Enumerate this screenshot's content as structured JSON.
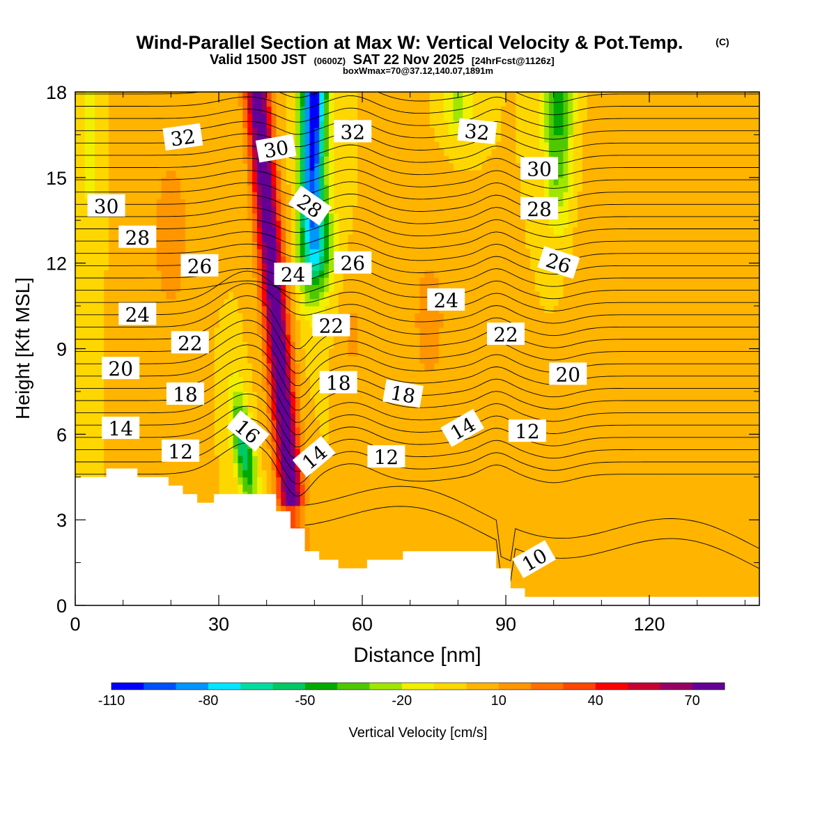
{
  "title": "Wind-Parallel Section at Max W: Vertical Velocity & Pot.Temp.",
  "title_mark": "(C)",
  "subtitle_a": "Valid 1500 JST",
  "subtitle_b": "(0600Z)",
  "subtitle_c": "SAT 22 Nov 2025",
  "subtitle_d": "[24hrFcst@1126z]",
  "subtitle2": "boxWmax=70@37.12,140.07,1891m",
  "chart_data": {
    "type": "heatmap",
    "xlabel": "Distance [nm]",
    "ylabel": "Height [Kft MSL]",
    "xlim": [
      0,
      143
    ],
    "ylim": [
      0,
      18
    ],
    "x_ticks": [
      0,
      30,
      60,
      90,
      120
    ],
    "y_ticks": [
      0,
      3,
      6,
      9,
      12,
      15,
      18
    ],
    "x_tick_labels": [
      "0",
      "30",
      "60",
      "90",
      "120"
    ],
    "y_tick_labels": [
      "0",
      "3",
      "6",
      "9",
      "12",
      "15",
      "18"
    ],
    "colorbar": {
      "label": "Vertical Velocity [cm/s]",
      "levels": [
        -110,
        -100,
        -90,
        -80,
        -70,
        -60,
        -50,
        -40,
        -30,
        -20,
        -10,
        0,
        10,
        20,
        30,
        40,
        50,
        60,
        70,
        80
      ],
      "tick_labels": [
        "-110",
        "-80",
        "-50",
        "-20",
        "10",
        "40",
        "70"
      ],
      "tick_values": [
        -110,
        -80,
        -50,
        -20,
        10,
        40,
        70
      ],
      "colors": [
        "#0000ff",
        "#0050ff",
        "#0096ff",
        "#00e6ff",
        "#00dca0",
        "#00c864",
        "#00aa00",
        "#50c800",
        "#a0e600",
        "#f0f000",
        "#ffd700",
        "#ffb400",
        "#ff9600",
        "#ff6e00",
        "#ff4600",
        "#ff0000",
        "#c80032",
        "#960064",
        "#640096"
      ]
    },
    "contour_labels": [
      {
        "text": "32",
        "x": 22.5,
        "y": 16.4,
        "angle": -8
      },
      {
        "text": "30",
        "x": 42,
        "y": 16.0,
        "angle": -10
      },
      {
        "text": "32",
        "x": 58,
        "y": 16.6,
        "angle": 0
      },
      {
        "text": "32",
        "x": 84,
        "y": 16.6,
        "angle": 6
      },
      {
        "text": "30",
        "x": 97,
        "y": 15.3,
        "angle": 0
      },
      {
        "text": "30",
        "x": 6.5,
        "y": 14.0,
        "angle": 0
      },
      {
        "text": "28",
        "x": 49,
        "y": 14.0,
        "angle": 35
      },
      {
        "text": "28",
        "x": 97,
        "y": 13.9,
        "angle": 0
      },
      {
        "text": "28",
        "x": 13,
        "y": 12.9,
        "angle": 0
      },
      {
        "text": "26",
        "x": 26,
        "y": 11.9,
        "angle": 0
      },
      {
        "text": "24",
        "x": 45.5,
        "y": 11.6,
        "angle": 0
      },
      {
        "text": "26",
        "x": 58,
        "y": 12.0,
        "angle": 0
      },
      {
        "text": "26",
        "x": 101,
        "y": 12.0,
        "angle": 18
      },
      {
        "text": "24",
        "x": 77.5,
        "y": 10.7,
        "angle": 0
      },
      {
        "text": "24",
        "x": 13,
        "y": 10.2,
        "angle": 0
      },
      {
        "text": "22",
        "x": 53.5,
        "y": 9.8,
        "angle": 0
      },
      {
        "text": "22",
        "x": 90,
        "y": 9.5,
        "angle": 0
      },
      {
        "text": "22",
        "x": 24,
        "y": 9.2,
        "angle": 0
      },
      {
        "text": "20",
        "x": 9.5,
        "y": 8.3,
        "angle": 0
      },
      {
        "text": "20",
        "x": 103,
        "y": 8.1,
        "angle": 0
      },
      {
        "text": "18",
        "x": 55,
        "y": 7.8,
        "angle": 0
      },
      {
        "text": "18",
        "x": 68.5,
        "y": 7.4,
        "angle": 10
      },
      {
        "text": "18",
        "x": 23,
        "y": 7.4,
        "angle": 0
      },
      {
        "text": "14",
        "x": 9.5,
        "y": 6.2,
        "angle": 0
      },
      {
        "text": "14",
        "x": 81,
        "y": 6.2,
        "angle": -30
      },
      {
        "text": "12",
        "x": 94.5,
        "y": 6.1,
        "angle": 0
      },
      {
        "text": "16",
        "x": 36,
        "y": 6.1,
        "angle": 40
      },
      {
        "text": "12",
        "x": 22,
        "y": 5.4,
        "angle": 0
      },
      {
        "text": "14",
        "x": 50,
        "y": 5.2,
        "angle": -40
      },
      {
        "text": "12",
        "x": 65,
        "y": 5.2,
        "angle": 0
      },
      {
        "text": "10",
        "x": 96,
        "y": 1.6,
        "angle": -30
      }
    ],
    "grid": false
  }
}
